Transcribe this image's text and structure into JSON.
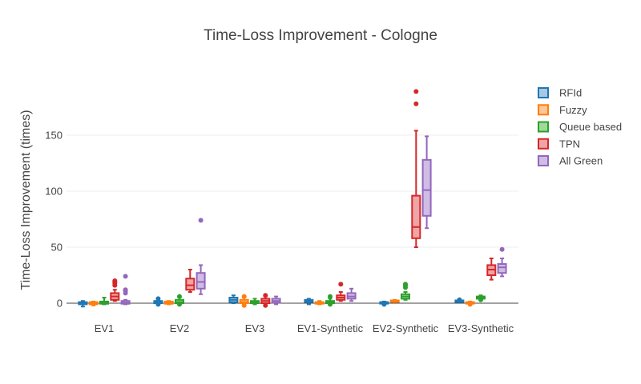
{
  "chart_data": {
    "type": "box",
    "title": "Time-Loss Improvement - Cologne",
    "xlabel": "",
    "ylabel": "Time-Loss Improvement (times)",
    "ylim": [
      -6,
      205
    ],
    "yticks": [
      0,
      50,
      100,
      150
    ],
    "grid": true,
    "legend_position": "right",
    "categories": [
      "EV1",
      "EV2",
      "EV3",
      "EV1-Synthetic",
      "EV2-Synthetic",
      "EV3-Synthetic"
    ],
    "series": [
      {
        "name": "RFId",
        "color": "#1f77b4",
        "fill": "#a9c9e2",
        "boxes": [
          {
            "min": -3,
            "q1": -1,
            "median": 0,
            "q3": 1,
            "max": 2,
            "outliers": []
          },
          {
            "min": -1,
            "q1": 0,
            "median": 1,
            "q3": 2,
            "max": 3,
            "outliers": [
              -1,
              4
            ]
          },
          {
            "min": 0,
            "q1": 1,
            "median": 3,
            "q3": 5,
            "max": 7,
            "outliers": []
          },
          {
            "min": -1,
            "q1": 1,
            "median": 2,
            "q3": 3,
            "max": 4,
            "outliers": []
          },
          {
            "min": -1,
            "q1": 0,
            "median": 0.5,
            "q3": 1,
            "max": 1.5,
            "outliers": [
              -1
            ]
          },
          {
            "min": 1,
            "q1": 1.5,
            "median": 2,
            "q3": 2.5,
            "max": 3,
            "outliers": [
              3
            ]
          }
        ]
      },
      {
        "name": "Fuzzy",
        "color": "#ff7f0e",
        "fill": "#ffc795",
        "boxes": [
          {
            "min": -2,
            "q1": -1,
            "median": 0,
            "q3": 1,
            "max": 1.5,
            "outliers": []
          },
          {
            "min": -1,
            "q1": -0.5,
            "median": 0.5,
            "q3": 1.5,
            "max": 2,
            "outliers": []
          },
          {
            "min": -2,
            "q1": 0,
            "median": 1,
            "q3": 3,
            "max": 5,
            "outliers": [
              -2,
              6
            ]
          },
          {
            "min": -1,
            "q1": -0.5,
            "median": 0,
            "q3": 1,
            "max": 2,
            "outliers": []
          },
          {
            "min": 1,
            "q1": 1.5,
            "median": 2,
            "q3": 2.5,
            "max": 3,
            "outliers": []
          },
          {
            "min": -1,
            "q1": 0,
            "median": 0.5,
            "q3": 1,
            "max": 1.5,
            "outliers": [
              -1
            ]
          }
        ]
      },
      {
        "name": "Queue based",
        "color": "#2ca02c",
        "fill": "#a1d99b",
        "boxes": [
          {
            "min": -1,
            "q1": -0.5,
            "median": 0.5,
            "q3": 1.5,
            "max": 5,
            "outliers": []
          },
          {
            "min": -1,
            "q1": 0,
            "median": 1,
            "q3": 3,
            "max": 5,
            "outliers": [
              -1,
              6
            ]
          },
          {
            "min": -1,
            "q1": 0,
            "median": 1,
            "q3": 2,
            "max": 4,
            "outliers": []
          },
          {
            "min": -1,
            "q1": 0,
            "median": 1,
            "q3": 2,
            "max": 4,
            "outliers": [
              -1,
              6
            ]
          },
          {
            "min": 3,
            "q1": 4,
            "median": 6,
            "q3": 8,
            "max": 10,
            "outliers": [
              14,
              16,
              17
            ]
          },
          {
            "min": 3,
            "q1": 4,
            "median": 5,
            "q3": 6,
            "max": 7,
            "outliers": [
              3
            ]
          }
        ]
      },
      {
        "name": "TPN",
        "color": "#d62728",
        "fill": "#eea5a6",
        "boxes": [
          {
            "min": 2,
            "q1": 3,
            "median": 6,
            "q3": 9,
            "max": 12,
            "outliers": [
              16,
              18,
              19,
              20
            ]
          },
          {
            "min": 10,
            "q1": 12,
            "median": 16,
            "q3": 22,
            "max": 30,
            "outliers": []
          },
          {
            "min": -2,
            "q1": 0,
            "median": 2,
            "q3": 4,
            "max": 6,
            "outliers": [
              -2,
              7
            ]
          },
          {
            "min": 2,
            "q1": 3,
            "median": 5,
            "q3": 7,
            "max": 10,
            "outliers": [
              17
            ]
          },
          {
            "min": 50,
            "q1": 58,
            "median": 68,
            "q3": 96,
            "max": 154,
            "outliers": [
              178,
              189
            ]
          },
          {
            "min": 21,
            "q1": 25,
            "median": 30,
            "q3": 34,
            "max": 40,
            "outliers": []
          }
        ]
      },
      {
        "name": "All Green",
        "color": "#9467bd",
        "fill": "#cfbde4",
        "boxes": [
          {
            "min": -1,
            "q1": -0.5,
            "median": 0.5,
            "q3": 2,
            "max": 3,
            "outliers": [
              9,
              11,
              12,
              24
            ]
          },
          {
            "min": 8,
            "q1": 13,
            "median": 19,
            "q3": 27,
            "max": 34,
            "outliers": [
              74
            ]
          },
          {
            "min": -1,
            "q1": 0.5,
            "median": 2,
            "q3": 4,
            "max": 6,
            "outliers": []
          },
          {
            "min": 2,
            "q1": 4,
            "median": 6,
            "q3": 9,
            "max": 13,
            "outliers": []
          },
          {
            "min": 67,
            "q1": 78,
            "median": 101,
            "q3": 128,
            "max": 149,
            "outliers": []
          },
          {
            "min": 24,
            "q1": 27,
            "median": 32,
            "q3": 35,
            "max": 40,
            "outliers": [
              48
            ]
          }
        ]
      }
    ]
  }
}
